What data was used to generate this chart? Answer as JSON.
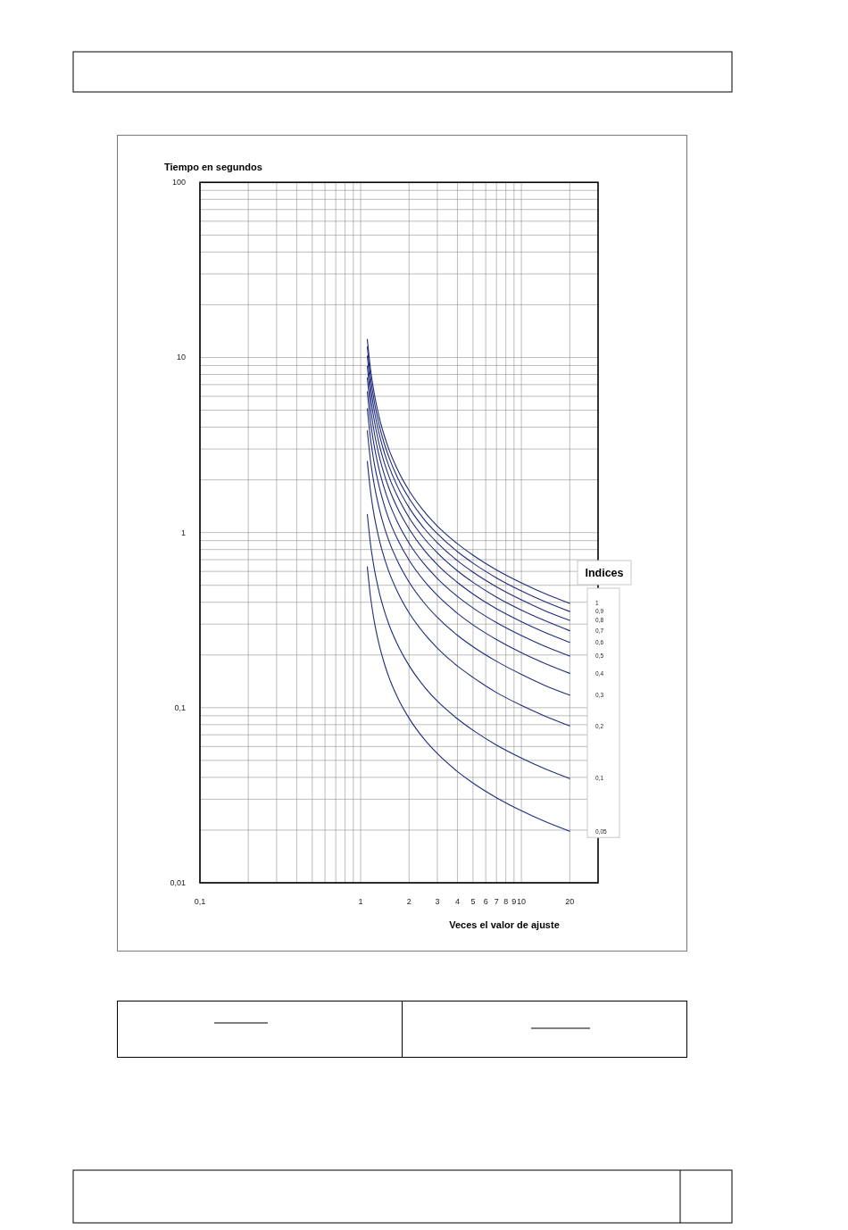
{
  "chart_data": {
    "type": "line",
    "xlabel": "Veces el valor de ajuste",
    "ylabel": "Tiempo en segundos",
    "legend_title": "Indices",
    "legend": "right",
    "log": "xy",
    "grid": true,
    "xlim": [
      0.1,
      30
    ],
    "ylim": [
      0.01,
      100
    ],
    "xticks": [
      {
        "value": 0.1,
        "label": "0,1"
      },
      {
        "value": 0.2,
        "label": null
      },
      {
        "value": 0.3,
        "label": null
      },
      {
        "value": 0.4,
        "label": null
      },
      {
        "value": 0.5,
        "label": null
      },
      {
        "value": 0.6,
        "label": null
      },
      {
        "value": 0.7,
        "label": null
      },
      {
        "value": 0.8,
        "label": null
      },
      {
        "value": 0.9,
        "label": null
      },
      1,
      2,
      3,
      4,
      5,
      6,
      7,
      8,
      9,
      10,
      20
    ],
    "yticks": [
      {
        "value": 0.01,
        "label": "0,01"
      },
      {
        "value": 0.02,
        "label": null
      },
      {
        "value": 0.03,
        "label": null
      },
      {
        "value": 0.04,
        "label": null
      },
      {
        "value": 0.05,
        "label": null
      },
      {
        "value": 0.06,
        "label": null
      },
      {
        "value": 0.07,
        "label": null
      },
      {
        "value": 0.08,
        "label": null
      },
      {
        "value": 0.09,
        "label": null
      },
      {
        "value": 0.1,
        "label": "0,1"
      },
      {
        "value": 0.2,
        "label": null
      },
      {
        "value": 0.3,
        "label": null
      },
      {
        "value": 0.4,
        "label": null
      },
      {
        "value": 0.5,
        "label": null
      },
      {
        "value": 0.6,
        "label": null
      },
      {
        "value": 0.7,
        "label": null
      },
      {
        "value": 0.8,
        "label": null
      },
      {
        "value": 0.9,
        "label": null
      },
      1,
      {
        "value": 2,
        "label": null
      },
      {
        "value": 3,
        "label": null
      },
      {
        "value": 4,
        "label": null
      },
      {
        "value": 5,
        "label": null
      },
      {
        "value": 6,
        "label": null
      },
      {
        "value": 7,
        "label": null
      },
      {
        "value": 8,
        "label": null
      },
      {
        "value": 9,
        "label": null
      },
      10,
      {
        "value": 20,
        "label": null
      },
      {
        "value": 30,
        "label": null
      },
      {
        "value": 40,
        "label": null
      },
      {
        "value": 50,
        "label": null
      },
      {
        "value": 60,
        "label": null
      },
      {
        "value": 70,
        "label": null
      },
      {
        "value": 80,
        "label": null
      },
      {
        "value": 90,
        "label": null
      },
      100
    ],
    "x": [
      1.1,
      1.15,
      1.2,
      1.3,
      1.4,
      1.5,
      1.7,
      2,
      2.5,
      3,
      4,
      5,
      7,
      10,
      14,
      20
    ],
    "series": [
      {
        "name": "1",
        "color": "#1f2c7c",
        "values": [
          12.7,
          8.68,
          6.65,
          4.62,
          3.6,
          2.98,
          2.28,
          1.74,
          1.31,
          1.09,
          0.864,
          0.743,
          0.612,
          0.516,
          0.448,
          0.394
        ]
      },
      {
        "name": "0,9",
        "color": "#1f2c7c",
        "values": [
          11.5,
          7.81,
          5.99,
          4.16,
          3.24,
          2.69,
          2.05,
          1.57,
          1.18,
          0.985,
          0.778,
          0.669,
          0.551,
          0.464,
          0.403,
          0.354
        ]
      },
      {
        "name": "0,8",
        "color": "#1f2c7c",
        "values": [
          10.2,
          6.94,
          5.32,
          3.7,
          2.88,
          2.39,
          1.82,
          1.39,
          1.05,
          0.875,
          0.691,
          0.594,
          0.49,
          0.413,
          0.358,
          0.315
        ]
      },
      {
        "name": "0,7",
        "color": "#1f2c7c",
        "values": [
          8.92,
          6.08,
          4.66,
          3.23,
          2.52,
          2.09,
          1.6,
          1.22,
          0.92,
          0.766,
          0.605,
          0.52,
          0.428,
          0.361,
          0.314,
          0.275
        ]
      },
      {
        "name": "0,6",
        "color": "#1f2c7c",
        "values": [
          7.64,
          5.21,
          3.99,
          2.77,
          2.16,
          1.79,
          1.37,
          1.05,
          0.788,
          0.656,
          0.519,
          0.446,
          0.367,
          0.31,
          0.269,
          0.236
        ]
      },
      {
        "name": "0,5",
        "color": "#1f2c7c",
        "values": [
          6.37,
          4.34,
          3.33,
          2.31,
          1.8,
          1.49,
          1.14,
          0.871,
          0.657,
          0.547,
          0.432,
          0.371,
          0.306,
          0.258,
          0.224,
          0.197
        ]
      },
      {
        "name": "0,4",
        "color": "#1f2c7c",
        "values": [
          5.1,
          3.47,
          2.66,
          1.85,
          1.44,
          1.19,
          0.912,
          0.696,
          0.526,
          0.438,
          0.346,
          0.297,
          0.245,
          0.206,
          0.179,
          0.157
        ]
      },
      {
        "name": "0,3",
        "color": "#1f2c7c",
        "values": [
          3.82,
          2.6,
          2.0,
          1.39,
          1.08,
          0.895,
          0.684,
          0.522,
          0.394,
          0.328,
          0.259,
          0.223,
          0.184,
          0.155,
          0.134,
          0.118
        ]
      },
      {
        "name": "0,2",
        "color": "#1f2c7c",
        "values": [
          2.55,
          1.74,
          1.33,
          0.924,
          0.72,
          0.597,
          0.456,
          0.348,
          0.263,
          0.219,
          0.173,
          0.149,
          0.122,
          0.103,
          0.0896,
          0.0787
        ]
      },
      {
        "name": "0,1",
        "color": "#1f2c7c",
        "values": [
          1.27,
          0.868,
          0.665,
          0.462,
          0.36,
          0.298,
          0.228,
          0.174,
          0.131,
          0.109,
          0.0864,
          0.0743,
          0.0612,
          0.0516,
          0.0448,
          0.0394
        ]
      },
      {
        "name": "0,05",
        "color": "#1f2c7c",
        "values": [
          0.637,
          0.434,
          0.333,
          0.231,
          0.18,
          0.149,
          0.114,
          0.0871,
          0.0657,
          0.0547,
          0.0432,
          0.0371,
          0.0306,
          0.0258,
          0.0224,
          0.0197
        ]
      }
    ]
  }
}
